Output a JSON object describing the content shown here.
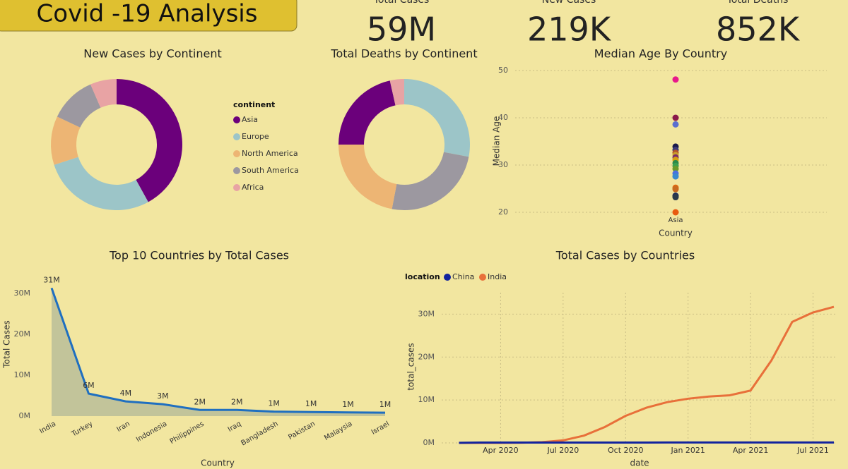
{
  "header": {
    "title": "Covid -19 Analysis"
  },
  "kpis": [
    {
      "label": "Total Cases",
      "value": "59M"
    },
    {
      "label": "New Cases",
      "value": "219K"
    },
    {
      "label": "Total Deaths",
      "value": "852K"
    }
  ],
  "chart_data": [
    {
      "type": "pie",
      "title": "New Cases by Continent",
      "legend": true,
      "legend_title": "continent",
      "categories": [
        "Asia",
        "Europe",
        "North America",
        "South America",
        "Africa"
      ],
      "values": [
        42,
        28,
        12,
        11.5,
        6.5
      ],
      "colors": [
        "#6b007b",
        "#9cc5c8",
        "#edb574",
        "#9c98a0",
        "#e8a3a4"
      ]
    },
    {
      "type": "pie",
      "title": "Total Deaths by Continent",
      "legend": false,
      "categories": [
        "Europe",
        "South America",
        "North America",
        "Asia",
        "Africa"
      ],
      "values": [
        28,
        25,
        22,
        21.5,
        3.5
      ],
      "colors": [
        "#9cc5c8",
        "#9c98a0",
        "#edb574",
        "#6b007b",
        "#e8a3a4"
      ]
    },
    {
      "type": "scatter",
      "title": "Median Age By Country",
      "x_label": "Country",
      "y_label": "Median Age",
      "categories": [
        "Asia"
      ],
      "grid": true,
      "values": [
        48.1,
        40,
        38.6,
        33.9,
        33.2,
        32.6,
        32.1,
        31.6,
        31.1,
        30.4,
        29.8,
        29.2,
        28.2,
        27.6,
        25.2,
        24.9,
        23.5,
        23.2,
        20
      ],
      "colors": [
        "#e8198b",
        "#8b1a4a",
        "#5a6fd0",
        "#1a1a4a",
        "#3a3a7a",
        "#b5542a",
        "#c8a02a",
        "#7a2a6a",
        "#d4a010",
        "#2a8a4a",
        "#3aa050",
        "#6a9a2a",
        "#4a70e0",
        "#3a8ad0",
        "#e06a10",
        "#c86a20",
        "#1a2a5a",
        "#2a3a4a",
        "#e85a10"
      ],
      "ylim": [
        20,
        50
      ],
      "yticks": [
        20,
        30,
        40,
        50
      ]
    },
    {
      "type": "area",
      "title": "Top 10 Countries by Total Cases",
      "x_label": "Country",
      "y_label": "Total Cases",
      "grid": false,
      "color": "#1f6fc0",
      "fill": "#b5bb98",
      "categories": [
        "India",
        "Turkey",
        "Iran",
        "Indonesia",
        "Philippines",
        "Iraq",
        "Bangladesh",
        "Pakistan",
        "Malaysia",
        "Israel"
      ],
      "values": [
        31300000,
        5500000,
        3600000,
        2900000,
        1500000,
        1500000,
        1100000,
        1000000,
        900000,
        850000
      ],
      "value_labels": [
        "31M",
        "6M",
        "4M",
        "3M",
        "2M",
        "2M",
        "1M",
        "1M",
        "1M",
        "1M"
      ],
      "ylim": [
        0,
        33600000
      ],
      "yticks": [
        {
          "value": 0,
          "label": "0M"
        },
        {
          "value": 10000000,
          "label": "10M"
        },
        {
          "value": 20000000,
          "label": "20M"
        },
        {
          "value": 30000000,
          "label": "30M"
        }
      ]
    },
    {
      "type": "line",
      "title": "Total Cases by Countries",
      "x_label": "date",
      "y_label": "total_cases",
      "legend_title": "location",
      "grid": true,
      "x": [
        "2020-02",
        "2020-03",
        "2020-04",
        "2020-05",
        "2020-06",
        "2020-07",
        "2020-08",
        "2020-09",
        "2020-10",
        "2020-11",
        "2020-12",
        "2021-01",
        "2021-02",
        "2021-03",
        "2021-04",
        "2021-05",
        "2021-06",
        "2021-07",
        "2021-08"
      ],
      "series": [
        {
          "name": "China",
          "color": "#12239e",
          "values": [
            12000,
            80000,
            82000,
            84000,
            84000,
            85000,
            88000,
            90000,
            90500,
            91000,
            93000,
            96000,
            100000,
            101000,
            102000,
            103000,
            103500,
            104000,
            105000
          ]
        },
        {
          "name": "India",
          "color": "#e8703a",
          "values": [
            0,
            0,
            2000,
            35000,
            190000,
            590000,
            1700000,
            3700000,
            6300000,
            8200000,
            9500000,
            10300000,
            10800000,
            11100000,
            12200000,
            19200000,
            28200000,
            30400000,
            31700000
          ]
        }
      ],
      "xlim": [
        "2020-01",
        "2021-08"
      ],
      "xticks": [
        {
          "value": "2020-04",
          "label": "Apr 2020"
        },
        {
          "value": "2020-07",
          "label": "Jul 2020"
        },
        {
          "value": "2020-10",
          "label": "Oct 2020"
        },
        {
          "value": "2021-01",
          "label": "Jan 2021"
        },
        {
          "value": "2021-04",
          "label": "Apr 2021"
        },
        {
          "value": "2021-07",
          "label": "Jul 2021"
        }
      ],
      "ylim": [
        0,
        35000000
      ],
      "yticks": [
        {
          "value": 0,
          "label": "0M"
        },
        {
          "value": 10000000,
          "label": "10M"
        },
        {
          "value": 20000000,
          "label": "20M"
        },
        {
          "value": 30000000,
          "label": "30M"
        }
      ]
    }
  ]
}
